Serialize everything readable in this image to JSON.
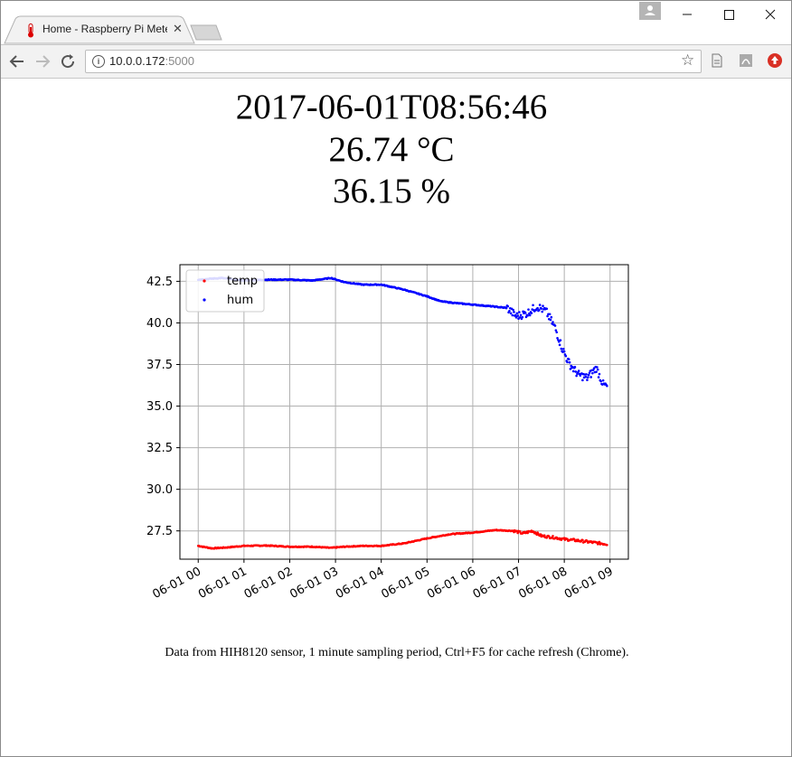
{
  "browser": {
    "tab_title": "Home - Raspberry Pi Mete",
    "tab_close": "✕",
    "url_host": "10.0.0.172",
    "url_port": ":5000",
    "win_minimize": "—",
    "win_maximize": "☐",
    "win_close": "✕",
    "icons": [
      "thermometer-icon",
      "back-icon",
      "forward-icon",
      "reload-icon",
      "info-icon",
      "star-icon",
      "document-icon",
      "pdf-icon",
      "update-icon",
      "profile-icon"
    ]
  },
  "readout": {
    "timestamp": "2017-06-01T08:56:46",
    "temperature": "26.74 °C",
    "humidity": "36.15 %"
  },
  "caption": "Data from HIH8120 sensor, 1 minute sampling period, Ctrl+F5 for cache refresh (Chrome).",
  "chart_data": {
    "type": "scatter",
    "xlabel": "",
    "ylabel": "",
    "ylim": [
      25.8,
      43.5
    ],
    "xlim_hours": [
      -0.4,
      9.4
    ],
    "grid": true,
    "legend_placement": "upper-left",
    "x_ticks": [
      "06-01 00",
      "06-01 01",
      "06-01 02",
      "06-01 03",
      "06-01 04",
      "06-01 05",
      "06-01 06",
      "06-01 07",
      "06-01 08",
      "06-01 09"
    ],
    "y_ticks": [
      "27.5",
      "30.0",
      "32.5",
      "35.0",
      "37.5",
      "40.0",
      "42.5"
    ],
    "series": [
      {
        "name": "temp",
        "color": "#ff0000",
        "points": [
          [
            0.0,
            26.6
          ],
          [
            0.3,
            26.45
          ],
          [
            0.6,
            26.5
          ],
          [
            1.0,
            26.6
          ],
          [
            1.5,
            26.62
          ],
          [
            2.0,
            26.55
          ],
          [
            2.5,
            26.55
          ],
          [
            2.9,
            26.48
          ],
          [
            3.2,
            26.55
          ],
          [
            3.6,
            26.6
          ],
          [
            4.0,
            26.6
          ],
          [
            4.5,
            26.75
          ],
          [
            5.0,
            27.05
          ],
          [
            5.5,
            27.3
          ],
          [
            6.0,
            27.4
          ],
          [
            6.5,
            27.55
          ],
          [
            6.9,
            27.5
          ],
          [
            7.1,
            27.35
          ],
          [
            7.3,
            27.5
          ],
          [
            7.5,
            27.2
          ],
          [
            7.8,
            27.1
          ],
          [
            8.0,
            27.0
          ],
          [
            8.2,
            26.95
          ],
          [
            8.5,
            26.85
          ],
          [
            8.8,
            26.75
          ],
          [
            8.95,
            26.7
          ]
        ]
      },
      {
        "name": "hum",
        "color": "#0000ff",
        "points": [
          [
            0.0,
            42.6
          ],
          [
            0.5,
            42.7
          ],
          [
            1.0,
            42.55
          ],
          [
            1.5,
            42.6
          ],
          [
            2.0,
            42.6
          ],
          [
            2.5,
            42.55
          ],
          [
            2.9,
            42.7
          ],
          [
            3.2,
            42.45
          ],
          [
            3.6,
            42.3
          ],
          [
            4.0,
            42.3
          ],
          [
            4.5,
            42.0
          ],
          [
            5.0,
            41.6
          ],
          [
            5.3,
            41.3
          ],
          [
            5.6,
            41.2
          ],
          [
            6.0,
            41.1
          ],
          [
            6.4,
            41.0
          ],
          [
            6.75,
            40.9
          ],
          [
            6.95,
            40.4
          ],
          [
            7.2,
            40.6
          ],
          [
            7.4,
            41.0
          ],
          [
            7.6,
            40.7
          ],
          [
            7.8,
            39.7
          ],
          [
            7.95,
            38.5
          ],
          [
            8.1,
            37.6
          ],
          [
            8.3,
            36.9
          ],
          [
            8.5,
            36.7
          ],
          [
            8.7,
            37.3
          ],
          [
            8.85,
            36.3
          ],
          [
            8.95,
            36.15
          ]
        ]
      }
    ]
  }
}
